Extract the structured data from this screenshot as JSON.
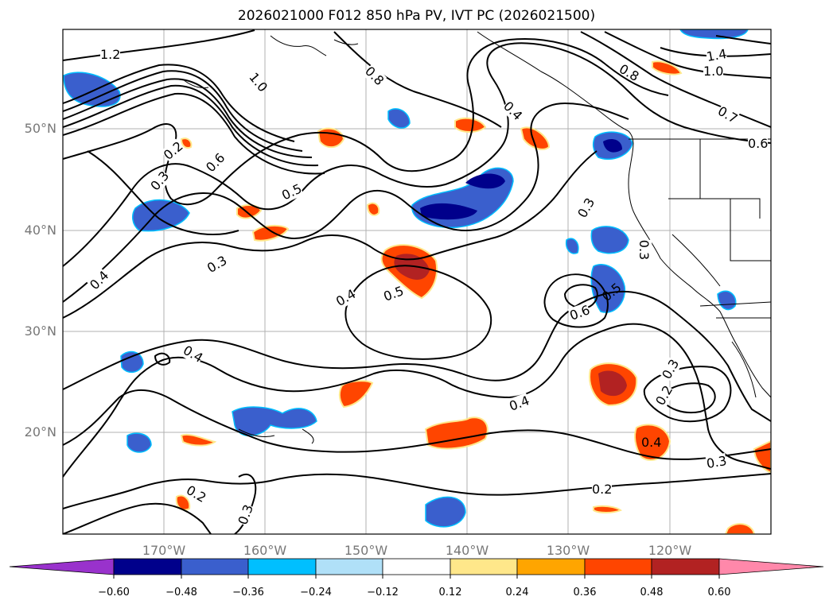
{
  "title": "2026021000 F012 850 hPa PV, IVT PC (2026021500)",
  "lat_labels": [
    "50°N",
    "40°N",
    "30°N",
    "20°N"
  ],
  "lon_labels": [
    "170°W",
    "160°W",
    "150°W",
    "140°W",
    "130°W",
    "120°W"
  ],
  "contour_labels": [
    "1.2",
    "1.0",
    "0.8",
    "0.4",
    "1.4",
    "1.0",
    "0.8",
    "0.7",
    "0.6",
    "0.2",
    "0.3",
    "0.6",
    "0.5",
    "0.3",
    "0.4",
    "0.3",
    "0.4",
    "0.5",
    "0.3",
    "0.6",
    "0.5",
    "0.4",
    "0.4",
    "0.3",
    "0.2",
    "0.4",
    "0.3",
    "0.2",
    "0.2",
    "0.3"
  ],
  "colorbar": {
    "ticks": [
      "−0.60",
      "−0.48",
      "−0.36",
      "−0.24",
      "−0.12",
      "0.12",
      "0.24",
      "0.36",
      "0.48",
      "0.60"
    ],
    "colors": [
      "#9932cc",
      "#00008b",
      "#3a5fcd",
      "#00bfff",
      "#b0e0f8",
      "#ffffff",
      "#ffe78a",
      "#ffa500",
      "#ff4500",
      "#b22222",
      "#ff88aa"
    ]
  }
}
